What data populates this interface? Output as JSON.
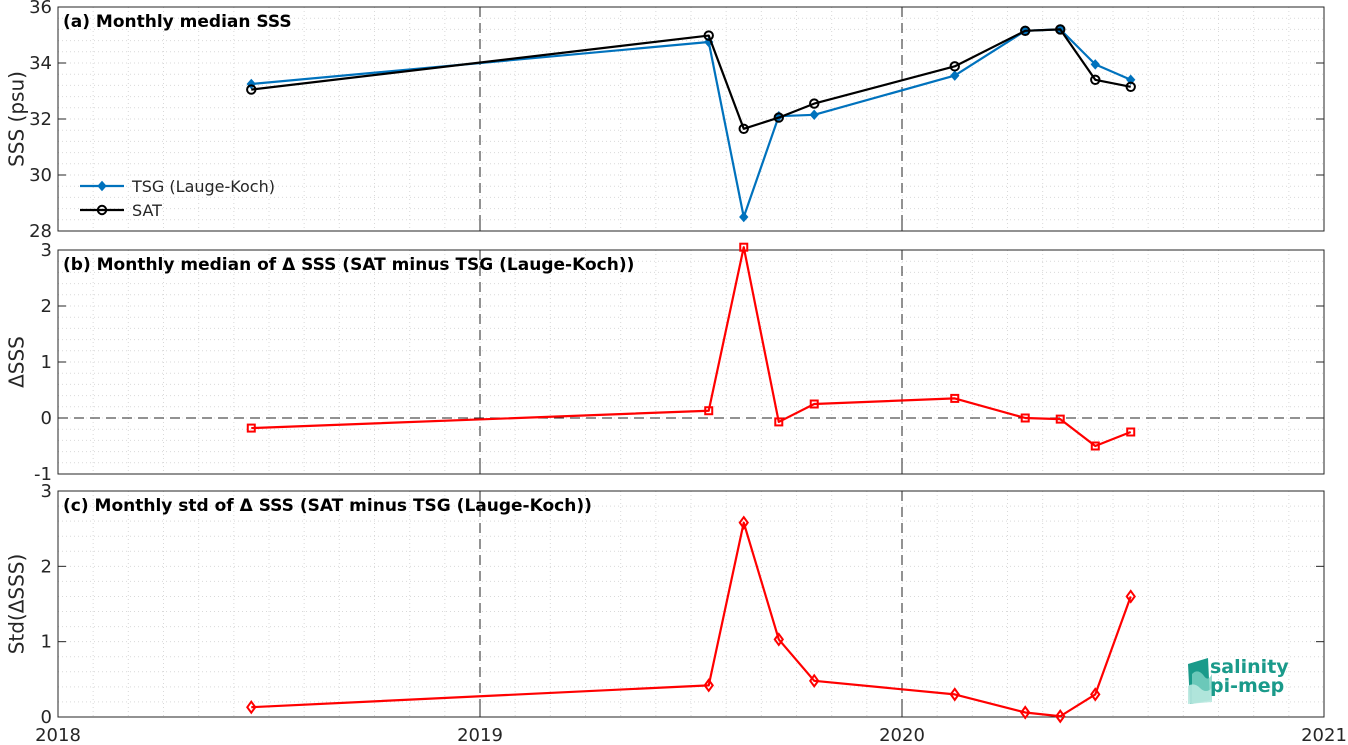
{
  "logo": {
    "line1": "salinity",
    "line2": "pi-mep",
    "color": "#1a9a8a"
  },
  "x_ticks": [
    {
      "value": 2018.0,
      "label": "2018"
    },
    {
      "value": 2019.0,
      "label": "2019"
    },
    {
      "value": 2020.0,
      "label": "2020"
    },
    {
      "value": 2021.0,
      "label": "2021"
    }
  ],
  "xlim": [
    2018.0,
    2021.0
  ],
  "chart_data": [
    {
      "type": "line",
      "title": "(a) Monthly median SSS",
      "ylabel": "SSS (psu)",
      "ylim": [
        28,
        36
      ],
      "yticks": [
        28,
        30,
        32,
        34,
        36
      ],
      "grid": true,
      "legend_placement": "bottom-left",
      "series": [
        {
          "name": "TSG (Lauge-Koch)",
          "color": "#0072BD",
          "marker": "diamond-filled",
          "x": [
            2018.458,
            2019.542,
            2019.625,
            2019.708,
            2019.792,
            2020.125,
            2020.292,
            2020.375,
            2020.458,
            2020.542
          ],
          "y": [
            33.25,
            34.75,
            28.5,
            32.1,
            32.15,
            33.55,
            35.15,
            35.2,
            33.95,
            33.4
          ]
        },
        {
          "name": "SAT",
          "color": "#000000",
          "marker": "circle-open",
          "x": [
            2018.458,
            2019.542,
            2019.625,
            2019.708,
            2019.792,
            2020.125,
            2020.292,
            2020.375,
            2020.458,
            2020.542
          ],
          "y": [
            33.05,
            34.98,
            31.65,
            32.05,
            32.55,
            33.88,
            35.15,
            35.2,
            33.4,
            33.15
          ]
        }
      ]
    },
    {
      "type": "line",
      "title": "(b) Monthly median of Δ SSS (SAT minus TSG (Lauge-Koch))",
      "ylabel": "ΔSSS",
      "ylim": [
        -1,
        3
      ],
      "yticks": [
        -1,
        0,
        1,
        2,
        3
      ],
      "grid": true,
      "zero_line": true,
      "series": [
        {
          "color": "#FF0000",
          "marker": "square-open",
          "x": [
            2018.458,
            2019.542,
            2019.625,
            2019.708,
            2019.792,
            2020.125,
            2020.292,
            2020.375,
            2020.458,
            2020.542
          ],
          "y": [
            -0.18,
            0.13,
            3.05,
            -0.07,
            0.25,
            0.35,
            0.0,
            -0.02,
            -0.5,
            -0.25
          ]
        }
      ]
    },
    {
      "type": "line",
      "title": "(c) Monthly std of Δ SSS (SAT minus TSG (Lauge-Koch))",
      "ylabel": "Std(ΔSSS)",
      "ylim": [
        0,
        3
      ],
      "yticks": [
        0,
        1,
        2,
        3
      ],
      "grid": true,
      "series": [
        {
          "color": "#FF0000",
          "marker": "diamond-open",
          "x": [
            2018.458,
            2019.542,
            2019.625,
            2019.708,
            2019.792,
            2020.125,
            2020.292,
            2020.375,
            2020.458,
            2020.542
          ],
          "y": [
            0.13,
            0.42,
            2.58,
            1.03,
            0.48,
            0.3,
            0.06,
            0.01,
            0.3,
            1.6
          ]
        }
      ]
    }
  ]
}
